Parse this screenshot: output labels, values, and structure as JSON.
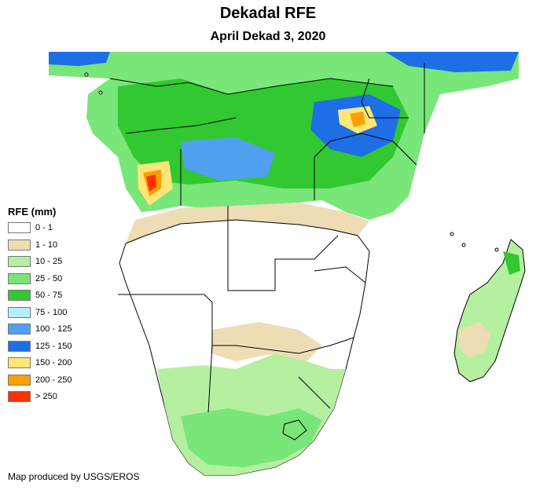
{
  "title": "Dekadal RFE",
  "subtitle": "April Dekad 3, 2020",
  "legend": {
    "title": "RFE (mm)",
    "items": [
      {
        "label": "0 - 1",
        "color": "#ffffff"
      },
      {
        "label": "1 - 10",
        "color": "#eedcb4"
      },
      {
        "label": "10 - 25",
        "color": "#b4f0a0"
      },
      {
        "label": "25 - 50",
        "color": "#78e678"
      },
      {
        "label": "50 - 75",
        "color": "#32c832"
      },
      {
        "label": "75 - 100",
        "color": "#b4f0fa"
      },
      {
        "label": "100 - 125",
        "color": "#50a0f0"
      },
      {
        "label": "125 - 150",
        "color": "#1e6ee6"
      },
      {
        "label": "150 - 200",
        "color": "#ffe678"
      },
      {
        "label": "200 - 250",
        "color": "#ffa000"
      },
      {
        "label": "> 250",
        "color": "#ff3200"
      }
    ]
  },
  "credit": "Map produced by USGS/EROS"
}
